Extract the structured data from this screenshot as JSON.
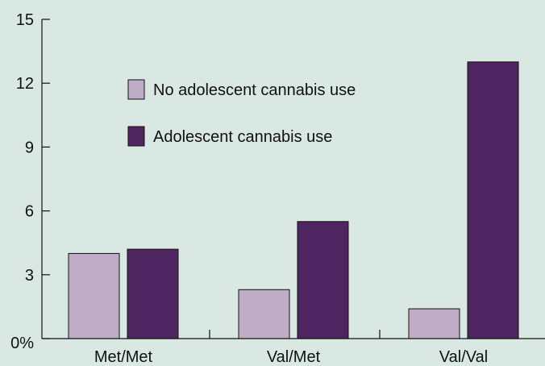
{
  "chart_data": {
    "type": "bar",
    "categories": [
      "Met/Met",
      "Val/Met",
      "Val/Val"
    ],
    "series": [
      {
        "name": "No adolescent cannabis use",
        "values": [
          4.0,
          2.3,
          1.4
        ],
        "color": "#bfadc6"
      },
      {
        "name": "Adolescent cannabis use",
        "values": [
          4.2,
          5.5,
          13.0
        ],
        "color": "#4e2560"
      }
    ],
    "y_ticks": [
      "0%",
      "3",
      "6",
      "9",
      "12",
      "15"
    ],
    "ylim": [
      0,
      15
    ],
    "title": "",
    "xlabel": "",
    "ylabel": "",
    "legend_position": "upper-center",
    "grid": false,
    "background_color": "#d9e8e2"
  }
}
